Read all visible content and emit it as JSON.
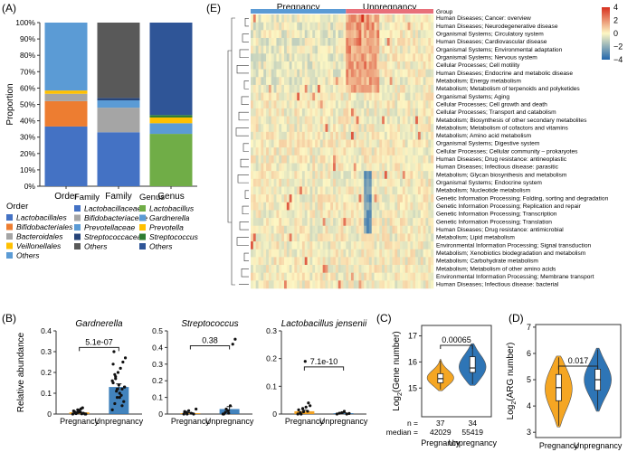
{
  "panel_labels": {
    "A": "(A)",
    "B": "(B)",
    "C": "(C)",
    "D": "(D)",
    "E": "(E)"
  },
  "chart_data": [
    {
      "panel": "A",
      "type": "bar",
      "stacked": true,
      "ylabel": "Proportion",
      "ylim": [
        0,
        100
      ],
      "yticks": [
        "0%",
        "10%",
        "20%",
        "30%",
        "40%",
        "50%",
        "60%",
        "70%",
        "80%",
        "90%",
        "100%"
      ],
      "categories": [
        "Order",
        "Family",
        "Genus"
      ],
      "stacks": [
        {
          "category": "Order",
          "segments": [
            {
              "name": "Lactobacillales",
              "value": 36.5,
              "color": "#4472c4"
            },
            {
              "name": "Bifidobacteriales",
              "value": 15.5,
              "color": "#ed7d31"
            },
            {
              "name": "Bacteroidales",
              "value": 4.5,
              "color": "#a5a5a5"
            },
            {
              "name": "Veillonellales",
              "value": 2.0,
              "color": "#ffc000"
            },
            {
              "name": "Others",
              "value": 41.5,
              "color": "#5b9bd5"
            }
          ]
        },
        {
          "category": "Family",
          "segments": [
            {
              "name": "Lactobacillaceae",
              "value": 33.0,
              "color": "#4472c4"
            },
            {
              "name": "Bifidobacteriaceae",
              "value": 15.0,
              "color": "#a5a5a5"
            },
            {
              "name": "Prevotellaceae",
              "value": 4.5,
              "color": "#5b9bd5"
            },
            {
              "name": "Streptococcaceae",
              "value": 1.5,
              "color": "#264478"
            },
            {
              "name": "Others",
              "value": 46.0,
              "color": "#595959"
            }
          ]
        },
        {
          "category": "Genus",
          "segments": [
            {
              "name": "Lactobacillus",
              "value": 32.0,
              "color": "#70ad47"
            },
            {
              "name": "Gardnerella",
              "value": 6.5,
              "color": "#5b9bd5"
            },
            {
              "name": "Prevotella",
              "value": 3.5,
              "color": "#ffc000"
            },
            {
              "name": "Streptococcus",
              "value": 1.5,
              "color": "#2e7d32"
            },
            {
              "name": "Others",
              "value": 56.5,
              "color": "#2f5597"
            }
          ]
        }
      ],
      "legend": [
        {
          "title": "Order",
          "items": [
            {
              "label": "Lactobacillales",
              "color": "#4472c4"
            },
            {
              "label": "Bifidobacteriales",
              "color": "#ed7d31"
            },
            {
              "label": "Bacteroidales",
              "color": "#a5a5a5"
            },
            {
              "label": "Veillonellales",
              "color": "#ffc000"
            },
            {
              "label": "Others",
              "color": "#5b9bd5"
            }
          ]
        },
        {
          "title": "Family",
          "items": [
            {
              "label": "Lactobacillaceae",
              "color": "#4472c4"
            },
            {
              "label": "Bifidobacteriaceae",
              "color": "#a5a5a5"
            },
            {
              "label": "Prevotellaceae",
              "color": "#5b9bd5"
            },
            {
              "label": "Streptococcaceae",
              "color": "#264478"
            },
            {
              "label": "Others",
              "color": "#595959"
            }
          ]
        },
        {
          "title": "Genus",
          "items": [
            {
              "label": "Lactobacillus",
              "color": "#70ad47"
            },
            {
              "label": "Gardnerella",
              "color": "#5b9bd5"
            },
            {
              "label": "Prevotella",
              "color": "#ffc000"
            },
            {
              "label": "Streptococcus",
              "color": "#2e7d32"
            },
            {
              "label": "Others",
              "color": "#2f5597"
            }
          ]
        }
      ]
    },
    {
      "panel": "B",
      "type": "bar",
      "ylabel": "Relative abundance",
      "groups": [
        "Pregnancy",
        "Unpregnancy"
      ],
      "colors": {
        "Pregnancy": "#f39c12",
        "Unpregnancy": "#2e75b6"
      },
      "subplots": [
        {
          "title": "Gardnerella",
          "ylim": [
            0,
            0.4
          ],
          "yticks": [
            0,
            0.1,
            0.2,
            0.3,
            0.4
          ],
          "ytick_labels": [
            "0",
            "0.1",
            "0.2",
            "0.3",
            "0.4"
          ],
          "means": [
            0.008,
            0.13
          ],
          "sem": [
            0.003,
            0.015
          ],
          "pvalue": "5.1e-07",
          "points": [
            [
              0.0,
              0.005,
              0.02,
              0.01,
              0.03,
              0.0,
              0.015,
              0.002,
              0.008,
              0.025,
              0.004,
              0.0,
              0.012,
              0.006,
              0.018,
              0.001
            ],
            [
              0.02,
              0.05,
              0.08,
              0.1,
              0.12,
              0.13,
              0.15,
              0.17,
              0.2,
              0.22,
              0.25,
              0.27,
              0.3,
              0.11,
              0.14,
              0.09,
              0.06,
              0.16,
              0.19,
              0.12,
              0.08,
              0.04,
              0.13,
              0.24,
              0.18
            ]
          ]
        },
        {
          "title": "Streptococcus",
          "ylim": [
            0,
            0.5
          ],
          "yticks": [
            0,
            0.1,
            0.2,
            0.3,
            0.4,
            0.5
          ],
          "ytick_labels": [
            "0",
            "0.1",
            "0.2",
            "0.3",
            "0.4",
            "0.5"
          ],
          "means": [
            0.005,
            0.03
          ],
          "sem": [
            0.003,
            0.015
          ],
          "pvalue": "0.38",
          "points": [
            [
              0.0,
              0.01,
              0.02,
              0.005,
              0.0,
              0.03,
              0.015,
              0.0
            ],
            [
              0.0,
              0.01,
              0.02,
              0.05,
              0.42,
              0.45,
              0.0,
              0.03,
              0.005
            ]
          ]
        },
        {
          "title": "Lactobacillus jensenii",
          "ylim": [
            0,
            0.3
          ],
          "yticks": [
            0,
            0.1,
            0.2,
            0.3
          ],
          "ytick_labels": [
            "0",
            "0.1",
            "0.2",
            "0.3"
          ],
          "means": [
            0.01,
            0.003
          ],
          "sem": [
            0.004,
            0.002
          ],
          "pvalue": "7.1e-10",
          "points": [
            [
              0.0,
              0.005,
              0.02,
              0.19,
              0.01,
              0.03,
              0.015,
              0.0,
              0.008,
              0.025,
              0.04
            ],
            [
              0.0,
              0.003,
              0.005,
              0.01,
              0.0,
              0.002
            ]
          ]
        }
      ]
    },
    {
      "panel": "C",
      "type": "violin",
      "ylabel_main": "Log",
      "ylabel_sub": "2",
      "ylabel_tail": "(Gene number)",
      "ylim": [
        14.6,
        17.4
      ],
      "yticks": [
        15,
        16,
        17
      ],
      "ytick_labels": [
        "15",
        "16",
        "17"
      ],
      "categories": [
        "Pregnancy",
        "Unpregnancy"
      ],
      "colors": {
        "Pregnancy": "#f5a623",
        "Unpregnancy": "#2e75b6"
      },
      "pvalue": "0.00065",
      "stats": [
        {
          "q1": 15.2,
          "median": 15.36,
          "q3": 15.55,
          "min": 14.9,
          "max": 16.1,
          "n": "37",
          "median_label": "42029"
        },
        {
          "q1": 15.6,
          "median": 15.77,
          "q3": 16.2,
          "min": 15.1,
          "max": 16.7,
          "n": "34",
          "median_label": "55419"
        }
      ],
      "n_label": "n =",
      "median_label": "median ="
    },
    {
      "panel": "D",
      "type": "violin",
      "ylabel_main": "Log",
      "ylabel_sub": "2",
      "ylabel_tail": "(ARG number)",
      "ylim": [
        2.8,
        7.1
      ],
      "yticks": [
        3,
        4,
        5,
        6,
        7
      ],
      "ytick_labels": [
        "3",
        "4",
        "5",
        "6",
        "7"
      ],
      "categories": [
        "Pregnancy",
        "Unpregnancy"
      ],
      "colors": {
        "Pregnancy": "#f5a623",
        "Unpregnancy": "#2e75b6"
      },
      "pvalue": "0.017",
      "stats": [
        {
          "q1": 4.2,
          "median": 4.7,
          "q3": 5.2,
          "min": 3.2,
          "max": 5.9
        },
        {
          "q1": 4.6,
          "median": 5.0,
          "q3": 5.4,
          "min": 3.8,
          "max": 6.2
        }
      ]
    },
    {
      "panel": "E",
      "type": "heatmap",
      "groups": [
        "Pregnancy",
        "Unpregnancy"
      ],
      "group_label": "Group",
      "group_colors": {
        "Pregnancy": "#5b9bd5",
        "Unpregnancy": "#e8707a"
      },
      "n_columns": [
        37,
        34
      ],
      "colorbar": {
        "ticks": [
          4,
          2,
          0,
          -2,
          -4
        ],
        "labels": [
          "4",
          "2",
          "0",
          "−2",
          "−4"
        ],
        "colors": [
          "#2166ac",
          "#fdf7c4",
          "#d7301f"
        ]
      },
      "rows": [
        "Human Diseases; Cancer: overview",
        "Human Diseases; Neurodegenerative disease",
        "Organismal Systems; Circulatory system",
        "Human Diseases; Cardiovascular disease",
        "Organismal Systems; Environmental adaptation",
        "Organismal Systems; Nervous system",
        "Cellular Processes; Cell motility",
        "Human Diseases; Endocrine and metabolic disease",
        "Metabolism; Energy metabolism",
        "Metabolism; Metabolism of terpenoids and polyketides",
        "Organismal Systems; Aging",
        "Cellular Processes; Cell growth and death",
        "Cellular Processes; Transport and catabolism",
        "Metabolism; Biosynthesis of other secondary metabolites",
        "Metabolism; Metabolism of cofactors and vitamins",
        "Metabolism; Amino acid metabolism",
        "Organismal Systems; Digestive system",
        "Cellular Processes; Cellular community – prokaryotes",
        "Human Diseases; Drug resistance: antineoplastic",
        "Human Diseases; Infectious disease: parasitic",
        "Metabolism; Glycan biosynthesis and metabolism",
        "Organismal Systems; Endocrine system",
        "Metabolism; Nucleotide metabolism",
        "Genetic Information Processing; Folding, sorting and degradation",
        "Genetic Information Processing; Replication and repair",
        "Genetic Information Processing; Transcription",
        "Genetic Information Processing; Translation",
        "Human Diseases; Drug resistance: antimicrobial",
        "Metabolism; Lipid metabolism",
        "Environmental Information Processing; Signal transduction",
        "Metabolism; Xenobiotics biodegradation and metabolism",
        "Metabolism; Carbohydrate metabolism",
        "Metabolism; Metabolism of other amino acids",
        "Environmental Information Processing; Membrane transport",
        "Human Diseases; Infectious disease: bacterial"
      ]
    }
  ]
}
